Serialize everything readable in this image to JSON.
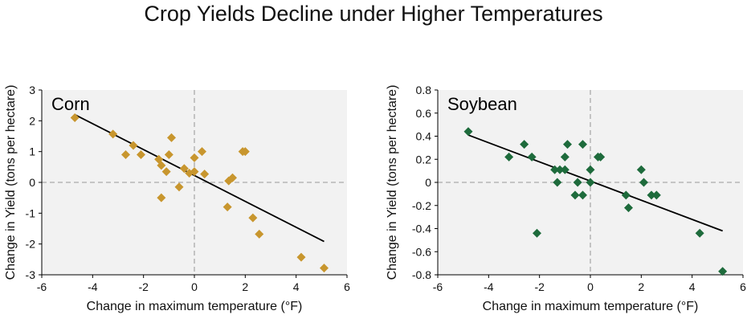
{
  "title": "Crop Yields Decline under Higher Temperatures",
  "colors": {
    "corn": "#c8962e",
    "soybean": "#1e6b3c",
    "plot_bg": "#f2f2f2",
    "trend": "#000000",
    "zero_line": "#aaaaaa"
  },
  "chart_data": [
    {
      "type": "scatter",
      "panel_label": "Corn",
      "xlabel": "Change in maximum temperature (°F)",
      "ylabel": "Change in Yield (tons per hectare)",
      "xlim": [
        -6,
        6
      ],
      "ylim": [
        -3,
        3
      ],
      "xticks": [
        "-6",
        "-4",
        "-2",
        "0",
        "2",
        "4",
        "6"
      ],
      "yticks": [
        "3",
        "2",
        "1",
        "0",
        "-1",
        "-2",
        "-3"
      ],
      "grid": false,
      "marker": "diamond",
      "points": [
        {
          "x": -4.7,
          "y": 2.1
        },
        {
          "x": -3.2,
          "y": 1.57
        },
        {
          "x": -2.7,
          "y": 0.9
        },
        {
          "x": -2.4,
          "y": 1.2
        },
        {
          "x": -2.1,
          "y": 0.9
        },
        {
          "x": -1.4,
          "y": 0.75
        },
        {
          "x": -1.3,
          "y": 0.55
        },
        {
          "x": -1.3,
          "y": -0.5
        },
        {
          "x": -1.1,
          "y": 0.35
        },
        {
          "x": -1.0,
          "y": 0.9
        },
        {
          "x": -0.9,
          "y": 1.45
        },
        {
          "x": -0.6,
          "y": -0.15
        },
        {
          "x": -0.4,
          "y": 0.45
        },
        {
          "x": -0.2,
          "y": 0.3
        },
        {
          "x": 0.0,
          "y": 0.8
        },
        {
          "x": 0.0,
          "y": 0.35
        },
        {
          "x": 0.3,
          "y": 1.0
        },
        {
          "x": 0.4,
          "y": 0.27
        },
        {
          "x": 1.3,
          "y": -0.8
        },
        {
          "x": 1.35,
          "y": 0.05
        },
        {
          "x": 1.5,
          "y": 0.15
        },
        {
          "x": 1.9,
          "y": 1.0
        },
        {
          "x": 2.0,
          "y": 1.0
        },
        {
          "x": 2.3,
          "y": -1.15
        },
        {
          "x": 2.55,
          "y": -1.68
        },
        {
          "x": 4.2,
          "y": -2.43
        },
        {
          "x": 5.1,
          "y": -2.78
        }
      ],
      "trend": {
        "x": [
          -4.7,
          5.1
        ],
        "y": [
          2.2,
          -1.92
        ]
      }
    },
    {
      "type": "scatter",
      "panel_label": "Soybean",
      "xlabel": "Change in maximum temperature (°F)",
      "ylabel": "Change in Yield (tons per hectare)",
      "xlim": [
        -6,
        6
      ],
      "ylim": [
        -0.8,
        0.8
      ],
      "xticks": [
        "-6",
        "-4",
        "-2",
        "0",
        "2",
        "4",
        "6"
      ],
      "yticks": [
        "0.8",
        "0.6",
        "0.4",
        "0.2",
        "0",
        "-0.2",
        "-0.4",
        "-0.6",
        "-0.8"
      ],
      "grid": false,
      "marker": "diamond",
      "points": [
        {
          "x": -4.8,
          "y": 0.44
        },
        {
          "x": -3.2,
          "y": 0.22
        },
        {
          "x": -2.6,
          "y": 0.33
        },
        {
          "x": -2.3,
          "y": 0.22
        },
        {
          "x": -2.1,
          "y": -0.44
        },
        {
          "x": -1.4,
          "y": 0.11
        },
        {
          "x": -1.3,
          "y": 0.0
        },
        {
          "x": -1.2,
          "y": 0.11
        },
        {
          "x": -1.0,
          "y": 0.11
        },
        {
          "x": -1.0,
          "y": 0.22
        },
        {
          "x": -0.9,
          "y": 0.33
        },
        {
          "x": -0.6,
          "y": -0.11
        },
        {
          "x": -0.5,
          "y": 0.0
        },
        {
          "x": -0.3,
          "y": -0.11
        },
        {
          "x": -0.3,
          "y": 0.33
        },
        {
          "x": 0.0,
          "y": 0.11
        },
        {
          "x": 0.0,
          "y": 0.0
        },
        {
          "x": 0.3,
          "y": 0.22
        },
        {
          "x": 0.4,
          "y": 0.22
        },
        {
          "x": 1.4,
          "y": -0.11
        },
        {
          "x": 1.5,
          "y": -0.22
        },
        {
          "x": 2.0,
          "y": 0.11
        },
        {
          "x": 2.1,
          "y": 0.0
        },
        {
          "x": 2.4,
          "y": -0.11
        },
        {
          "x": 2.6,
          "y": -0.11
        },
        {
          "x": 4.3,
          "y": -0.44
        },
        {
          "x": 5.2,
          "y": -0.77
        }
      ],
      "trend": {
        "x": [
          -4.8,
          5.2
        ],
        "y": [
          0.41,
          -0.42
        ]
      }
    }
  ]
}
